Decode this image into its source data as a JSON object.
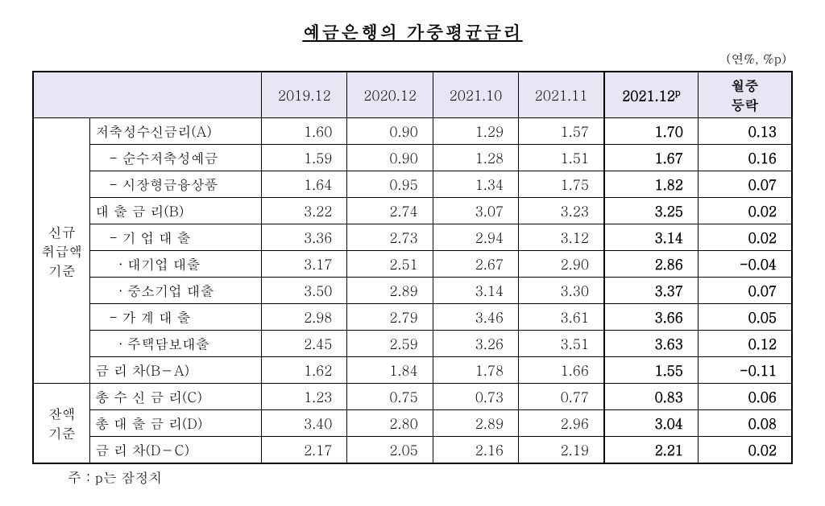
{
  "title": "예금은행의 가중평균금리",
  "unit": "(연%, %p)",
  "footnote": "주 : p는 잠정치",
  "columns": {
    "c1": "2019.12",
    "c2": "2020.12",
    "c3": "2021.10",
    "c4": "2021.11",
    "c5_html": "2021.12<sup>p</sup>",
    "c6_line1": "월중",
    "c6_line2": "등락"
  },
  "groups": {
    "g1": "신규\n취급액\n기준",
    "g2": "잔액\n기준"
  },
  "rows": [
    {
      "g": "g1",
      "label": "저축성수신금리(A)",
      "v": [
        "1.60",
        "0.90",
        "1.29",
        "1.57",
        "1.70",
        "0.13"
      ]
    },
    {
      "g": "g1",
      "label": "   - 순수저축성예금",
      "v": [
        "1.59",
        "0.90",
        "1.28",
        "1.51",
        "1.67",
        "0.16"
      ]
    },
    {
      "g": "g1",
      "label": "   - 시장형금융상품",
      "v": [
        "1.64",
        "0.95",
        "1.34",
        "1.75",
        "1.82",
        "0.07"
      ]
    },
    {
      "g": "g1",
      "label": "대 출 금 리(B)",
      "v": [
        "3.22",
        "2.74",
        "3.07",
        "3.23",
        "3.25",
        "0.02"
      ]
    },
    {
      "g": "g1",
      "label": "   - 기 업 대 출",
      "v": [
        "3.36",
        "2.73",
        "2.94",
        "3.12",
        "3.14",
        "0.02"
      ]
    },
    {
      "g": "g1",
      "label": "     · 대기업 대출",
      "v": [
        "3.17",
        "2.51",
        "2.67",
        "2.90",
        "2.86",
        "-0.04"
      ]
    },
    {
      "g": "g1",
      "label": "     · 중소기업 대출",
      "v": [
        "3.50",
        "2.89",
        "3.14",
        "3.30",
        "3.37",
        "0.07"
      ]
    },
    {
      "g": "g1",
      "label": "   - 가 계 대 출",
      "v": [
        "2.98",
        "2.79",
        "3.46",
        "3.61",
        "3.66",
        "0.05"
      ]
    },
    {
      "g": "g1",
      "label": "     · 주택담보대출",
      "v": [
        "2.45",
        "2.59",
        "3.26",
        "3.51",
        "3.63",
        "0.12"
      ]
    },
    {
      "g": "g1",
      "label": "금 리 차(B－A)",
      "v": [
        "1.62",
        "1.84",
        "1.78",
        "1.66",
        "1.55",
        "-0.11"
      ]
    },
    {
      "g": "g2",
      "label": "총 수 신 금 리(C)",
      "v": [
        "1.23",
        "0.75",
        "0.73",
        "0.77",
        "0.83",
        "0.06"
      ]
    },
    {
      "g": "g2",
      "label": "총 대 출 금 리(D)",
      "v": [
        "3.40",
        "2.80",
        "2.89",
        "2.96",
        "3.04",
        "0.08"
      ]
    },
    {
      "g": "g2",
      "label": "금 리 차(D－C)",
      "v": [
        "2.17",
        "2.05",
        "2.16",
        "2.19",
        "2.21",
        "0.02"
      ]
    }
  ]
}
